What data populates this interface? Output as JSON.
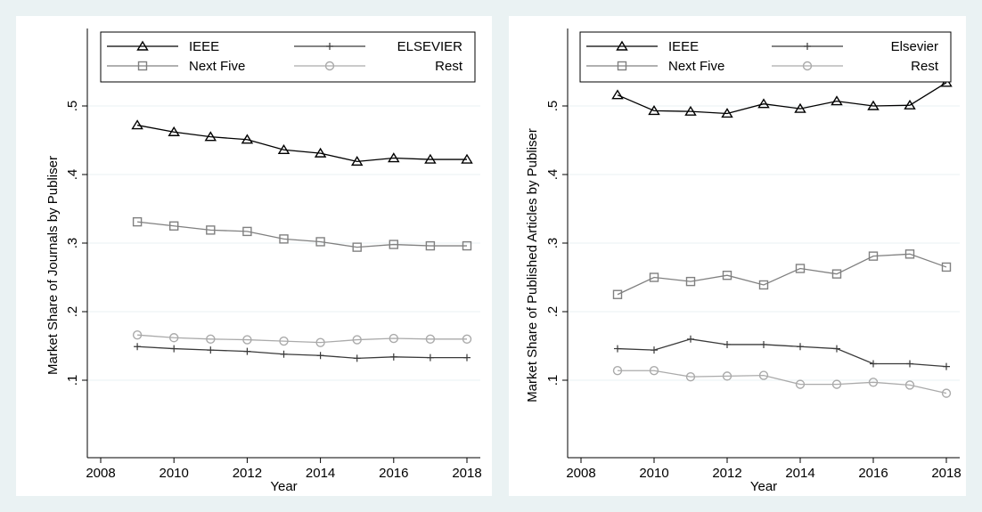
{
  "chart_data": [
    {
      "type": "line",
      "xlabel": "Year",
      "ylabel": "Market Share of Journals by Publiser",
      "xlim": [
        2008,
        2018
      ],
      "ylim": [
        0,
        0.6
      ],
      "xticks": [
        2008,
        2010,
        2012,
        2014,
        2016,
        2018
      ],
      "yticks": [
        0.1,
        0.2,
        0.3,
        0.4,
        0.5
      ],
      "ytick_labels": [
        ".1",
        ".2",
        ".3",
        ".4",
        ".5"
      ],
      "grid": true,
      "legend_position": "top",
      "x": [
        2009,
        2010,
        2011,
        2012,
        2013,
        2014,
        2015,
        2016,
        2017,
        2018
      ],
      "series": [
        {
          "name": "IEEE",
          "marker": "triangle",
          "color": "#000000",
          "values": [
            0.472,
            0.462,
            0.455,
            0.451,
            0.436,
            0.431,
            0.419,
            0.424,
            0.422,
            0.422
          ]
        },
        {
          "name": "ELSEVIER",
          "marker": "plus",
          "color": "#3a3a3a",
          "values": [
            0.149,
            0.146,
            0.144,
            0.142,
            0.138,
            0.136,
            0.132,
            0.134,
            0.133,
            0.133
          ]
        },
        {
          "name": "Next Five",
          "marker": "square",
          "color": "#808080",
          "values": [
            0.331,
            0.325,
            0.319,
            0.317,
            0.306,
            0.302,
            0.294,
            0.298,
            0.296,
            0.296
          ]
        },
        {
          "name": "Rest",
          "marker": "circle",
          "color": "#aaaaaa",
          "values": [
            0.166,
            0.162,
            0.16,
            0.159,
            0.157,
            0.155,
            0.159,
            0.161,
            0.16,
            0.16
          ]
        }
      ]
    },
    {
      "type": "line",
      "xlabel": "Year",
      "ylabel": "Market Share of Published Articles by Publiser",
      "xlim": [
        2008,
        2018
      ],
      "ylim": [
        0,
        0.6
      ],
      "xticks": [
        2008,
        2010,
        2012,
        2014,
        2016,
        2018
      ],
      "yticks": [
        0.1,
        0.2,
        0.3,
        0.4,
        0.5
      ],
      "ytick_labels": [
        ".1",
        ".2",
        ".3",
        ".4",
        ".5"
      ],
      "grid": true,
      "legend_position": "top",
      "x": [
        2009,
        2010,
        2011,
        2012,
        2013,
        2014,
        2015,
        2016,
        2017,
        2018
      ],
      "series": [
        {
          "name": "IEEE",
          "marker": "triangle",
          "color": "#000000",
          "values": [
            0.516,
            0.493,
            0.492,
            0.489,
            0.503,
            0.496,
            0.507,
            0.5,
            0.501,
            0.534
          ]
        },
        {
          "name": "Elsevier",
          "marker": "plus",
          "color": "#3a3a3a",
          "values": [
            0.146,
            0.144,
            0.16,
            0.152,
            0.152,
            0.149,
            0.146,
            0.124,
            0.124,
            0.12
          ]
        },
        {
          "name": "Next Five",
          "marker": "square",
          "color": "#808080",
          "values": [
            0.225,
            0.25,
            0.244,
            0.253,
            0.239,
            0.263,
            0.255,
            0.281,
            0.284,
            0.265
          ]
        },
        {
          "name": "Rest",
          "marker": "circle",
          "color": "#aaaaaa",
          "values": [
            0.114,
            0.114,
            0.105,
            0.106,
            0.107,
            0.094,
            0.094,
            0.097,
            0.093,
            0.081
          ]
        }
      ]
    }
  ]
}
